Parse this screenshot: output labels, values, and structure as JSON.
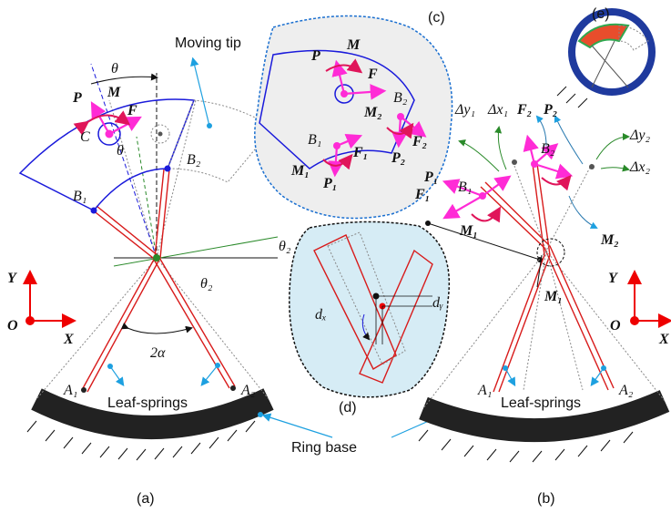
{
  "panel_a": {
    "caption": "(a)",
    "moving_tip": "Moving tip",
    "theta": "θ",
    "theta_inner": "θ",
    "P": "P",
    "M": "M",
    "F": "F",
    "C": "C",
    "B1": "B₁",
    "B2": "B₂",
    "theta2_top": "θ₂",
    "theta2_mid": "θ₂",
    "two_alpha": "2α",
    "A1": "A₁",
    "A2": "A₂",
    "leaf_springs": "Leaf-springs",
    "axis_y": "Y",
    "axis_o": "O",
    "axis_x": "X"
  },
  "panel_b": {
    "caption": "(b)",
    "dy1": "Δy₁",
    "dx1": "Δx₁",
    "F2": "F₂",
    "P2": "P₂",
    "dy2": "Δy₂",
    "dx2": "Δx₂",
    "P1": "P₁",
    "B1": "B₁",
    "B2": "B₂",
    "F1": "F₁",
    "M1_top": "M₁",
    "M2": "M₂",
    "M1_mid": "M₁",
    "A1": "A₁",
    "A2": "A₂",
    "leaf_springs": "Leaf-springs",
    "axis_y": "Y",
    "axis_o": "O",
    "axis_x": "X"
  },
  "panel_c": {
    "caption": "(c)",
    "P": "P",
    "M": "M",
    "F": "F",
    "M2": "M₂",
    "B2": "B₂",
    "B1": "B₁",
    "F1": "F₁",
    "F2": "F₂",
    "P2": "P₂",
    "M1": "M₁",
    "P1": "P₁"
  },
  "panel_d": {
    "caption": "(d)",
    "dx": "dₓ",
    "dy": "dᵧ"
  },
  "panel_e": {
    "caption": "(e)"
  },
  "ring_base": "Ring base"
}
